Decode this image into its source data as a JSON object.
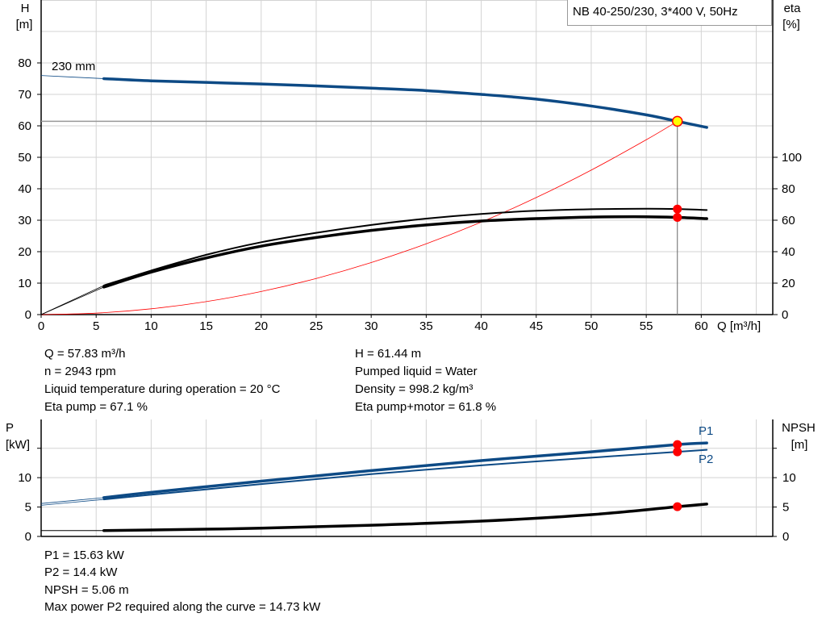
{
  "title": "NB 40-250/230, 3*400 V, 50Hz",
  "colors": {
    "head": "#0d4a85",
    "power": "#0d4a85",
    "eta": "#000000",
    "npsh": "#000000",
    "system": "#ff0000",
    "duty_point": "#ffff00",
    "markers": "#ff0000",
    "grid": "#d3d3d3"
  },
  "chart_data": [
    {
      "type": "line",
      "xlabel": "Q [m³/h]",
      "ylabel_left": {
        "name": "H",
        "unit": "[m]"
      },
      "ylabel_right": {
        "name": "eta",
        "unit": "[%]"
      },
      "xlim": [
        0,
        66.5
      ],
      "ylim_left": [
        0,
        100
      ],
      "ylim_right": [
        0,
        200
      ],
      "x_ticks": [
        0,
        5,
        10,
        15,
        20,
        25,
        30,
        35,
        40,
        45,
        50,
        55,
        60
      ],
      "y_ticks_left": [
        0,
        10,
        20,
        30,
        40,
        50,
        60,
        70,
        80
      ],
      "y_ticks_right": [
        0,
        20,
        40,
        60,
        80,
        100
      ],
      "grid": true,
      "curve_label": "230 mm",
      "series": [
        {
          "key": "head",
          "axis": "left",
          "x": [
            0,
            5.7,
            10,
            15,
            20,
            25,
            30,
            35,
            40,
            45,
            50,
            55,
            57.83,
            60.5
          ],
          "y": [
            76,
            75,
            74.3,
            73.8,
            73.3,
            72.7,
            72,
            71.2,
            70,
            68.5,
            66.3,
            63.5,
            61.44,
            59.5
          ],
          "thin_until": 5.7
        },
        {
          "key": "eta_pump",
          "axis": "right",
          "x": [
            0,
            5.7,
            10,
            15,
            20,
            25,
            30,
            35,
            40,
            45,
            50,
            55,
            57.83,
            60.5
          ],
          "y": [
            0,
            18.5,
            28,
            38,
            46,
            52,
            57,
            61,
            64,
            66,
            67,
            67.3,
            67.1,
            66.5
          ],
          "thin_until": 5.7
        },
        {
          "key": "eta_pump_motor",
          "axis": "right",
          "x": [
            0,
            5.7,
            10,
            15,
            20,
            25,
            30,
            35,
            40,
            45,
            50,
            55,
            57.83,
            60.5
          ],
          "y": [
            0,
            17.5,
            27,
            36,
            43.5,
            49,
            53.5,
            57,
            59.5,
            61,
            62,
            62.2,
            61.8,
            61
          ],
          "thin_until": 5.7
        },
        {
          "key": "system",
          "axis": "left",
          "x": [
            0,
            5,
            10,
            15,
            20,
            25,
            30,
            35,
            40,
            45,
            50,
            55,
            57.83
          ],
          "y": [
            0,
            0.46,
            1.84,
            4.13,
            7.35,
            11.48,
            16.53,
            22.5,
            29.39,
            37.2,
            45.93,
            55.57,
            61.44
          ]
        }
      ],
      "duty_point": {
        "Q": 57.83,
        "H": 61.44,
        "eta_pump": 67.1,
        "eta_pump_motor": 61.8
      }
    },
    {
      "type": "line",
      "ylabel_left": {
        "name": "P",
        "unit": "[kW]"
      },
      "ylabel_right": {
        "name": "NPSH",
        "unit": "[m]"
      },
      "xlim": [
        0,
        66.5
      ],
      "ylim": [
        0,
        19.9
      ],
      "y_ticks": [
        0,
        5,
        10
      ],
      "grid": true,
      "series": [
        {
          "name": "P1",
          "key": "p1",
          "x": [
            0,
            5.7,
            10,
            20,
            30,
            40,
            50,
            57.83,
            60.5
          ],
          "y": [
            5.6,
            6.6,
            7.5,
            9.4,
            11.2,
            12.9,
            14.4,
            15.63,
            15.9
          ],
          "thin_until": 5.7
        },
        {
          "name": "P2",
          "key": "p2",
          "x": [
            0,
            5.7,
            10,
            20,
            30,
            40,
            50,
            57.83,
            60.5
          ],
          "y": [
            5.3,
            6.3,
            7.1,
            8.9,
            10.6,
            12.1,
            13.4,
            14.4,
            14.73
          ],
          "thin_until": 5.7
        },
        {
          "key": "npsh",
          "x": [
            0,
            5.7,
            10,
            20,
            30,
            40,
            50,
            57.83,
            60.5
          ],
          "y": [
            1.0,
            1.0,
            1.1,
            1.4,
            1.9,
            2.6,
            3.7,
            5.06,
            5.5
          ],
          "thin_until": 5.7
        }
      ],
      "duty_point": {
        "Q": 57.83,
        "P1": 15.63,
        "P2": 14.4,
        "NPSH": 5.06
      }
    }
  ],
  "info_top": {
    "left": [
      "Q = 57.83 m³/h",
      "n = 2943 rpm",
      "Liquid temperature during operation = 20 °C",
      "Eta pump = 67.1 %"
    ],
    "right": [
      "H = 61.44 m",
      "Pumped liquid = Water",
      "Density = 998.2 kg/m³",
      "Eta pump+motor = 61.8 %"
    ]
  },
  "info_bottom": [
    "P1 = 15.63 kW",
    "P2 = 14.4 kW",
    "NPSH = 5.06 m",
    "Max power P2 required along the curve = 14.73 kW"
  ]
}
